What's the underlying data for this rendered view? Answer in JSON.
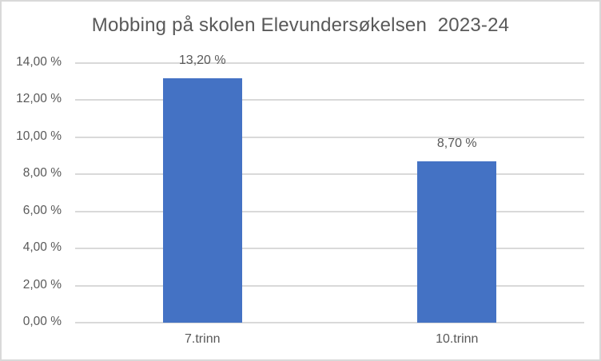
{
  "chart_data": {
    "type": "bar",
    "title": "Mobbing på skolen Elevundersøkelsen  2023-24",
    "categories": [
      "7.trinn",
      "10.trinn"
    ],
    "values": [
      13.2,
      8.7
    ],
    "data_labels": [
      "13,20 %",
      "8,70 %"
    ],
    "xlabel": "",
    "ylabel": "",
    "y_axis": {
      "min": 0,
      "max": 14,
      "step": 2,
      "tick_labels": [
        "0,00 %",
        "2,00 %",
        "4,00 %",
        "6,00 %",
        "8,00 %",
        "10,00 %",
        "12,00 %",
        "14,00 %"
      ]
    },
    "grid": true,
    "legend_position": "none"
  },
  "colors": {
    "bar": "#4472C4",
    "gridline": "#D9D9D9",
    "axis_line": "#D9D9D9",
    "border": "#D9D9D9",
    "text": "#595959",
    "background": "#FFFFFF"
  }
}
